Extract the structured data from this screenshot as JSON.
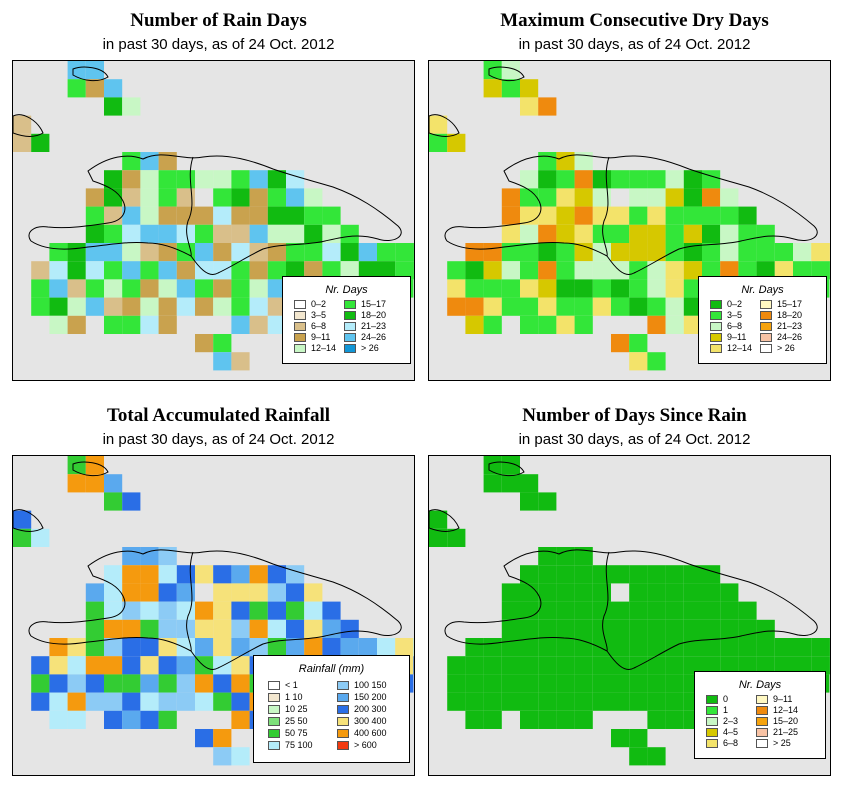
{
  "panels": [
    {
      "title": "Number of Rain Days",
      "subtitle": "in past 30 days, as of  24 Oct. 2012",
      "legend_title": "Nr. Days",
      "legend": [
        {
          "label": "0–2",
          "color": "#ffffff"
        },
        {
          "label": "3–5",
          "color": "#f3e7cf"
        },
        {
          "label": "6–8",
          "color": "#d9bf8a"
        },
        {
          "label": "9–11",
          "color": "#c9a24e"
        },
        {
          "label": "12–14",
          "color": "#c8f7c5"
        },
        {
          "label": "15–17",
          "color": "#33e639"
        },
        {
          "label": "18–20",
          "color": "#11bb11"
        },
        {
          "label": "21–23",
          "color": "#b4ecfa"
        },
        {
          "label": "24–26",
          "color": "#5fc4ef"
        },
        {
          "label": "> 26",
          "color": "#1196d6"
        }
      ]
    },
    {
      "title": "Maximum Consecutive Dry Days",
      "subtitle": "in past 30 days, as of  24 Oct. 2012",
      "legend_title": "Nr. Days",
      "legend": [
        {
          "label": "0–2",
          "color": "#11bb11"
        },
        {
          "label": "3–5",
          "color": "#33e639"
        },
        {
          "label": "6–8",
          "color": "#c8f7c5"
        },
        {
          "label": "9–11",
          "color": "#d6c800"
        },
        {
          "label": "12–14",
          "color": "#f3e36a"
        },
        {
          "label": "15–17",
          "color": "#fff8c2"
        },
        {
          "label": "18–20",
          "color": "#ef8a0e"
        },
        {
          "label": "21–23",
          "color": "#f6a30d"
        },
        {
          "label": "24–26",
          "color": "#f8c3a5"
        },
        {
          "label": "> 26",
          "color": "#ffffff"
        }
      ]
    },
    {
      "title": "Total Accumulated Rainfall",
      "subtitle": "in past 30 days, as of  24 Oct. 2012",
      "legend_title": "Rainfall (mm)",
      "legend": [
        {
          "label": "< 1",
          "color": "#ffffff"
        },
        {
          "label": "1   10",
          "color": "#f3e7cf"
        },
        {
          "label": "10   25",
          "color": "#c8f7c5"
        },
        {
          "label": "25   50",
          "color": "#7de07a"
        },
        {
          "label": "50   75",
          "color": "#33cc33"
        },
        {
          "label": "75   100",
          "color": "#b4ecfa"
        },
        {
          "label": "100   150",
          "color": "#8ccbf5"
        },
        {
          "label": "150   200",
          "color": "#5aa9ee"
        },
        {
          "label": "200   300",
          "color": "#2a6ee6"
        },
        {
          "label": "300   400",
          "color": "#f6e27a"
        },
        {
          "label": "400   600",
          "color": "#f59a0e"
        },
        {
          "label": "> 600",
          "color": "#f23a10"
        }
      ]
    },
    {
      "title": "Number of Days Since Rain",
      "subtitle": "in past 30 days, as of  24 Oct. 2012",
      "legend_title": "Nr. Days",
      "legend": [
        {
          "label": "0",
          "color": "#11bb11"
        },
        {
          "label": "1",
          "color": "#33e639"
        },
        {
          "label": "2–3",
          "color": "#c8f7c5"
        },
        {
          "label": "4–5",
          "color": "#d6c800"
        },
        {
          "label": "6–8",
          "color": "#f3e36a"
        },
        {
          "label": "9–11",
          "color": "#fff8c2"
        },
        {
          "label": "12–14",
          "color": "#ef8a0e"
        },
        {
          "label": "15–20",
          "color": "#f6a30d"
        },
        {
          "label": "21–25",
          "color": "#f8c3a5"
        },
        {
          "label": "> 25",
          "color": "#ffffff"
        }
      ]
    }
  ]
}
